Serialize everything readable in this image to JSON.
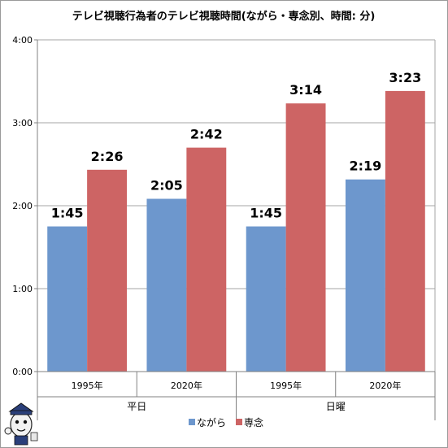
{
  "chart_data": {
    "type": "bar",
    "title": "テレビ視聴行為者のテレビ視聴時間(ながら・専念別、時間: 分)",
    "categories": [
      "1995年",
      "2020年",
      "1995年",
      "2020年"
    ],
    "groups": [
      {
        "label": "平日",
        "categories": [
          "1995年",
          "2020年"
        ]
      },
      {
        "label": "日曜",
        "categories": [
          "1995年",
          "2020年"
        ]
      }
    ],
    "series": [
      {
        "name": "ながら",
        "color": "#6d97cd",
        "values": [
          105,
          125,
          105,
          139
        ],
        "labels": [
          "1:45",
          "2:05",
          "1:45",
          "2:19"
        ]
      },
      {
        "name": "専念",
        "color": "#cd6464",
        "values": [
          146,
          162,
          194,
          203
        ],
        "labels": [
          "2:26",
          "2:42",
          "3:14",
          "3:23"
        ]
      }
    ],
    "ylim": [
      0,
      240
    ],
    "yticks": [
      0,
      60,
      120,
      180,
      240
    ],
    "ytick_labels": [
      "0:00",
      "1:00",
      "2:00",
      "3:00",
      "4:00"
    ],
    "y_unit": "minutes",
    "grid": true,
    "legend": "bottom"
  }
}
